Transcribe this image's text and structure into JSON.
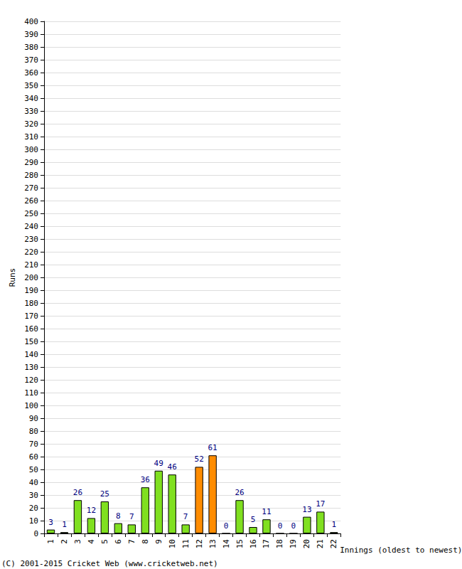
{
  "chart_data": {
    "type": "bar",
    "xlabel": "Innings (oldest to newest)",
    "ylabel": "Runs",
    "annotations": [
      "(C) 2001-2015 Cricket Web (www.cricketweb.net)"
    ],
    "categories": [
      "1",
      "2",
      "3",
      "4",
      "5",
      "6",
      "7",
      "8",
      "9",
      "10",
      "11",
      "12",
      "13",
      "14",
      "15",
      "16",
      "17",
      "18",
      "19",
      "20",
      "21",
      "22"
    ],
    "values": [
      3,
      1,
      26,
      12,
      25,
      8,
      7,
      36,
      49,
      46,
      7,
      52,
      61,
      0,
      26,
      5,
      11,
      0,
      0,
      13,
      17,
      1
    ],
    "colors": [
      "#80e020",
      "#80e020",
      "#80e020",
      "#80e020",
      "#80e020",
      "#80e020",
      "#80e020",
      "#80e020",
      "#80e020",
      "#80e020",
      "#80e020",
      "#ff8c00",
      "#ff8c00",
      "#80e020",
      "#80e020",
      "#80e020",
      "#80e020",
      "#80e020",
      "#80e020",
      "#80e020",
      "#80e020",
      "#80e020"
    ],
    "ylim": [
      0,
      400
    ],
    "yticks": [
      0,
      10,
      20,
      30,
      40,
      50,
      60,
      70,
      80,
      90,
      100,
      110,
      120,
      130,
      140,
      150,
      160,
      170,
      180,
      190,
      200,
      210,
      220,
      230,
      240,
      250,
      260,
      270,
      280,
      290,
      300,
      310,
      320,
      330,
      340,
      350,
      360,
      370,
      380,
      390,
      400
    ],
    "grid": true,
    "data_labels": true
  }
}
